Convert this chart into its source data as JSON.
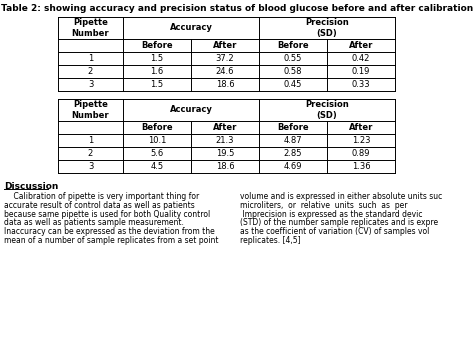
{
  "title": "Table 2: showing accuracy and precision status of blood glucose before and after calibration",
  "table1": {
    "header_row1": [
      "Pipette\nNumber",
      "Accuracy",
      "",
      "Precision\n(SD)",
      ""
    ],
    "header_row2": [
      "",
      "Before",
      "After",
      "Before",
      "After"
    ],
    "rows": [
      [
        "1",
        "1.5",
        "37.2",
        "0.55",
        "0.42"
      ],
      [
        "2",
        "1.6",
        "24.6",
        "0.58",
        "0.19"
      ],
      [
        "3",
        "1.5",
        "18.6",
        "0.45",
        "0.33"
      ]
    ]
  },
  "table2": {
    "header_row1": [
      "Pipette\nNumber",
      "Accuracy",
      "",
      "Precision\n(SD)",
      ""
    ],
    "header_row2": [
      "",
      "Before",
      "After",
      "Before",
      "After"
    ],
    "rows": [
      [
        "1",
        "10.1",
        "21.3",
        "4.87",
        "1.23"
      ],
      [
        "2",
        "5.6",
        "19.5",
        "2.85",
        "0.89"
      ],
      [
        "3",
        "4.5",
        "18.6",
        "4.69",
        "1.36"
      ]
    ]
  },
  "discussion_title": "Discussion",
  "discussion_left": "    Calibration of pipette is very important thing for\naccurate result of control data as well as patients\nbecause same pipette is used for both Quality control\ndata as well as patients sample measurement.\nInaccuracy can be expressed as the deviation from the\nmean of a number of sample replicates from a set point",
  "discussion_right": "volume and is expressed in either absolute units suc\nmicroliters,  or  relative  units  such  as  per\n Imprecision is expressed as the standard devic\n(STD) of the number sample replicates and is expre\nas the coefficient of variation (CV) of samples vol\nreplicates. [4,5]",
  "bg_color": "#ffffff",
  "text_color": "#000000",
  "font_size": 6.0,
  "title_font_size": 6.5
}
